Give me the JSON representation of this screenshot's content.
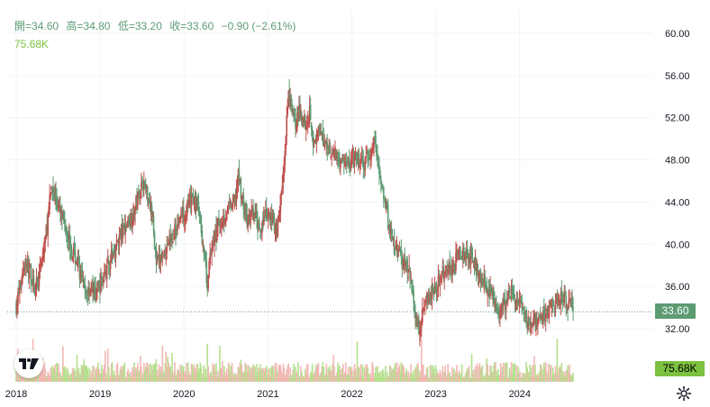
{
  "legend": {
    "open_label": "開",
    "open_value": "=34.60",
    "high_label": "高",
    "high_value": "=34.80",
    "low_label": "低",
    "low_value": "=33.20",
    "close_label": "收",
    "close_value": "=33.60",
    "change": "−0.90 (−2.61%)",
    "volume": "75.68K"
  },
  "price_tag": "33.60",
  "volume_tag": "75.68K",
  "colors": {
    "up": "#c0504d",
    "down": "#5d9b73",
    "volume_up": "#f2b8b4",
    "volume_down": "#b5e08e",
    "volume_label": "#7cc13f",
    "last_price_line": "#5d9b73",
    "grid": "#f0f3fa",
    "axis_text": "#131722"
  },
  "icons": {
    "logo": "tradingview-logo-icon",
    "settings": "gear-icon"
  },
  "chart_data": {
    "type": "candlestick",
    "title": "",
    "y_axis": {
      "position": "right",
      "ticks": [
        "32.00",
        "36.00",
        "40.00",
        "44.00",
        "48.00",
        "52.00",
        "56.00",
        "60.00"
      ],
      "range": [
        30.5,
        61.2
      ]
    },
    "x_axis": {
      "ticks": [
        "2018",
        "2019",
        "2020",
        "2021",
        "2022",
        "2023",
        "2024"
      ],
      "range": [
        2018.0,
        2024.7
      ]
    },
    "grid": true,
    "last_price": 33.6,
    "price_path": [
      [
        2018.0,
        34.2
      ],
      [
        2018.05,
        36.0
      ],
      [
        2018.1,
        38.5
      ],
      [
        2018.18,
        37.0
      ],
      [
        2018.25,
        36.0
      ],
      [
        2018.32,
        39.0
      ],
      [
        2018.38,
        42.5
      ],
      [
        2018.42,
        45.5
      ],
      [
        2018.47,
        44.5
      ],
      [
        2018.52,
        43.0
      ],
      [
        2018.6,
        41.5
      ],
      [
        2018.66,
        39.5
      ],
      [
        2018.74,
        38.0
      ],
      [
        2018.82,
        35.2
      ],
      [
        2018.88,
        36.0
      ],
      [
        2018.95,
        35.5
      ],
      [
        2019.05,
        37.0
      ],
      [
        2019.15,
        39.0
      ],
      [
        2019.25,
        41.0
      ],
      [
        2019.32,
        42.0
      ],
      [
        2019.4,
        43.0
      ],
      [
        2019.45,
        44.5
      ],
      [
        2019.5,
        46.0
      ],
      [
        2019.56,
        45.0
      ],
      [
        2019.62,
        43.0
      ],
      [
        2019.67,
        38.0
      ],
      [
        2019.72,
        38.5
      ],
      [
        2019.8,
        40.0
      ],
      [
        2019.88,
        41.0
      ],
      [
        2019.95,
        42.5
      ],
      [
        2020.05,
        43.5
      ],
      [
        2020.1,
        44.5
      ],
      [
        2020.16,
        43.5
      ],
      [
        2020.2,
        42.0
      ],
      [
        2020.25,
        38.0
      ],
      [
        2020.28,
        36.0
      ],
      [
        2020.32,
        39.5
      ],
      [
        2020.4,
        41.5
      ],
      [
        2020.5,
        43.0
      ],
      [
        2020.6,
        44.0
      ],
      [
        2020.65,
        46.5
      ],
      [
        2020.7,
        44.0
      ],
      [
        2020.76,
        42.0
      ],
      [
        2020.82,
        43.0
      ],
      [
        2020.9,
        41.5
      ],
      [
        2020.97,
        42.5
      ],
      [
        2021.05,
        42.5
      ],
      [
        2021.1,
        41.5
      ],
      [
        2021.13,
        42.5
      ],
      [
        2021.17,
        46.0
      ],
      [
        2021.2,
        48.0
      ],
      [
        2021.24,
        54.0
      ],
      [
        2021.28,
        53.0
      ],
      [
        2021.32,
        51.5
      ],
      [
        2021.38,
        52.5
      ],
      [
        2021.45,
        51.5
      ],
      [
        2021.5,
        53.0
      ],
      [
        2021.55,
        49.0
      ],
      [
        2021.6,
        50.5
      ],
      [
        2021.66,
        50.0
      ],
      [
        2021.75,
        49.0
      ],
      [
        2021.85,
        48.0
      ],
      [
        2021.95,
        47.5
      ],
      [
        2022.05,
        48.0
      ],
      [
        2022.15,
        47.5
      ],
      [
        2022.22,
        48.5
      ],
      [
        2022.27,
        50.0
      ],
      [
        2022.32,
        47.0
      ],
      [
        2022.4,
        44.0
      ],
      [
        2022.45,
        41.0
      ],
      [
        2022.52,
        39.5
      ],
      [
        2022.6,
        38.5
      ],
      [
        2022.66,
        38.0
      ],
      [
        2022.72,
        36.0
      ],
      [
        2022.76,
        33.0
      ],
      [
        2022.8,
        32.0
      ],
      [
        2022.86,
        34.5
      ],
      [
        2022.95,
        35.5
      ],
      [
        2023.05,
        36.5
      ],
      [
        2023.12,
        38.0
      ],
      [
        2023.18,
        37.5
      ],
      [
        2023.24,
        38.5
      ],
      [
        2023.3,
        39.5
      ],
      [
        2023.36,
        38.5
      ],
      [
        2023.42,
        39.0
      ],
      [
        2023.5,
        37.5
      ],
      [
        2023.58,
        36.5
      ],
      [
        2023.66,
        35.0
      ],
      [
        2023.74,
        33.8
      ],
      [
        2023.82,
        34.2
      ],
      [
        2023.9,
        35.5
      ],
      [
        2024.0,
        34.0
      ],
      [
        2024.06,
        33.0
      ],
      [
        2024.12,
        32.5
      ],
      [
        2024.2,
        32.2
      ],
      [
        2024.28,
        33.0
      ],
      [
        2024.36,
        34.0
      ],
      [
        2024.45,
        34.5
      ],
      [
        2024.52,
        34.8
      ],
      [
        2024.58,
        34.5
      ],
      [
        2024.64,
        33.6
      ]
    ]
  }
}
